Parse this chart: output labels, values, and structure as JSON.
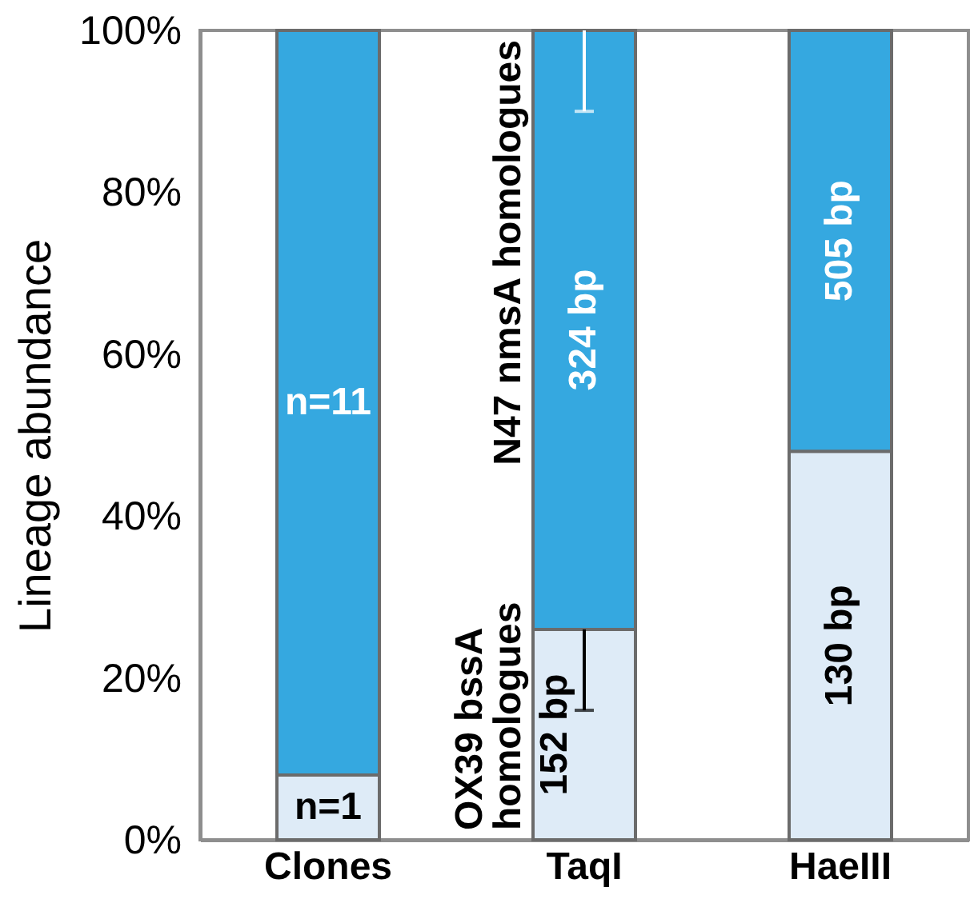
{
  "chart_data": {
    "type": "bar",
    "stacked": true,
    "ylabel": "Lineage abundance",
    "categories": [
      "Clones",
      "TaqI",
      "HaeIII"
    ],
    "series": [
      {
        "name": "OX39 bssA homologues",
        "color": "#deebf7",
        "values": [
          8,
          26,
          48
        ],
        "errors": [
          null,
          [
            16,
            26
          ],
          null
        ]
      },
      {
        "name": "N47 nmsA homologues",
        "color": "#35a8e0",
        "values": [
          92,
          74,
          52
        ],
        "errors": [
          null,
          [
            90,
            100
          ],
          null
        ]
      }
    ],
    "annotations": [
      "n=1",
      "n=11",
      "152 bp",
      "324 bp",
      "130 bp",
      "505 bp"
    ],
    "ylim": [
      0,
      100
    ],
    "yticks": [
      {
        "value": 0,
        "label": "0%"
      },
      {
        "value": 20,
        "label": "20%"
      },
      {
        "value": 40,
        "label": "40%"
      },
      {
        "value": 60,
        "label": "60%"
      },
      {
        "value": 80,
        "label": "80%"
      },
      {
        "value": 100,
        "label": "100%"
      }
    ],
    "legend": false
  }
}
